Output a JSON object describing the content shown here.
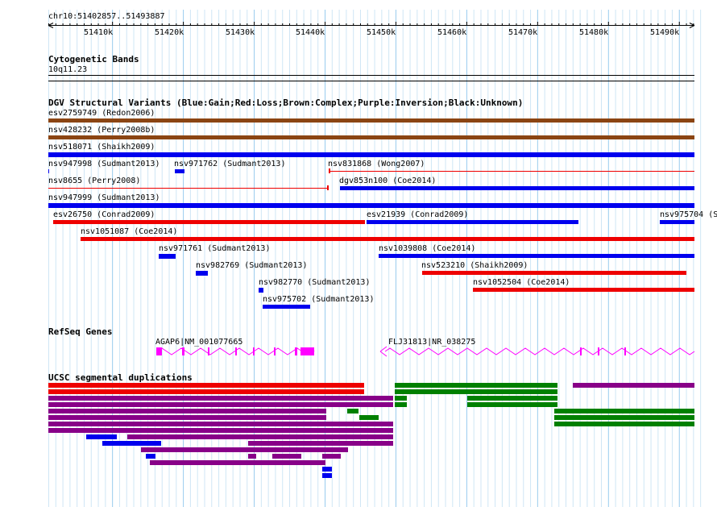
{
  "ruler": {
    "position_label": "chr10:51402857..51493887",
    "ticks": [
      "51410k",
      "51420k",
      "51430k",
      "51440k",
      "51450k",
      "51460k",
      "51470k",
      "51480k",
      "51490k"
    ]
  },
  "cytoband": {
    "title": "Cytogenetic Bands",
    "band_label": "10q11.23"
  },
  "dgv": {
    "title": "DGV Structural Variants (Blue:Gain;Red:Loss;Brown:Complex;Purple:Inversion;Black:Unknown)",
    "colors": {
      "gain": "#0000ee",
      "loss": "#ee0000",
      "complex": "#8b4513"
    },
    "labels": [
      "esv2759749 (Redon2006)",
      "nsv428232 (Perry2008b)",
      "nsv518071 (Shaikh2009)",
      "nsv947998 (Sudmant2013)",
      "nsv971762 (Sudmant2013)",
      "nsv831868 (Wong2007)",
      "nsv8655 (Perry2008)",
      "dgv853n100 (Coe2014)",
      "nsv947999 (Sudmant2013)",
      "esv26750 (Conrad2009)",
      "esv21939 (Conrad2009)",
      "nsv975704 (S",
      "nsv1051087 (Coe2014)",
      "nsv971761 (Sudmant2013)",
      "nsv1039808 (Coe2014)",
      "nsv982769 (Sudmant2013)",
      "nsv523210 (Shaikh2009)",
      "nsv982770 (Sudmant2013)",
      "nsv1052504 (Coe2014)",
      "nsv975702 (Sudmant2013)"
    ]
  },
  "refseq": {
    "title": "RefSeq Genes",
    "genes": [
      "AGAP6|NM_001077665",
      "FLJ31813|NR_038275"
    ],
    "color": "#ff00ff"
  },
  "segdup": {
    "title": "UCSC segmental duplications",
    "colors": {
      "red": "#ee0000",
      "purple": "#880088",
      "green": "#008000",
      "blue": "#0000ee"
    }
  }
}
